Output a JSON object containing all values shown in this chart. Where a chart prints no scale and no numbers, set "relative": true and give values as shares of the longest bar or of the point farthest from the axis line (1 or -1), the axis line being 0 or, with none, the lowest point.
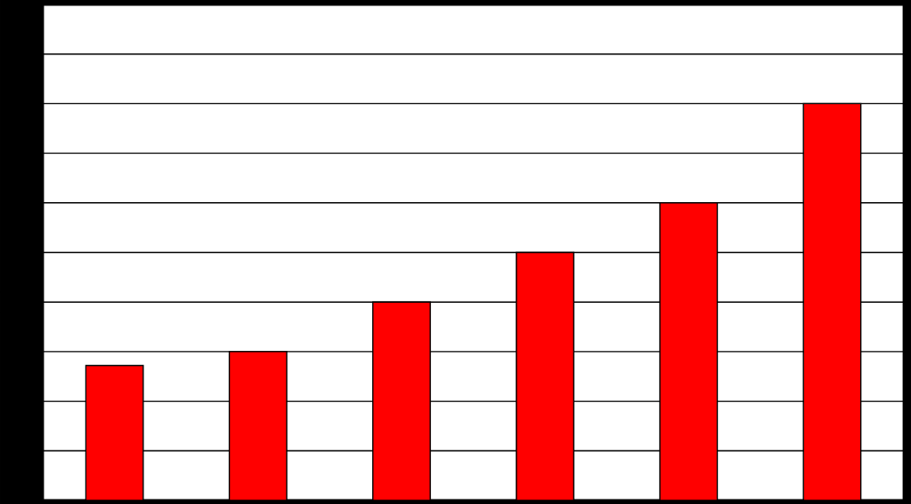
{
  "chart_data": {
    "type": "bar",
    "relative": true,
    "categories": [
      null,
      null,
      null,
      null,
      null,
      null
    ],
    "values": [
      0.34,
      0.375,
      0.5,
      0.625,
      0.75,
      1
    ],
    "color": "#ff0000",
    "grid": "y"
  }
}
